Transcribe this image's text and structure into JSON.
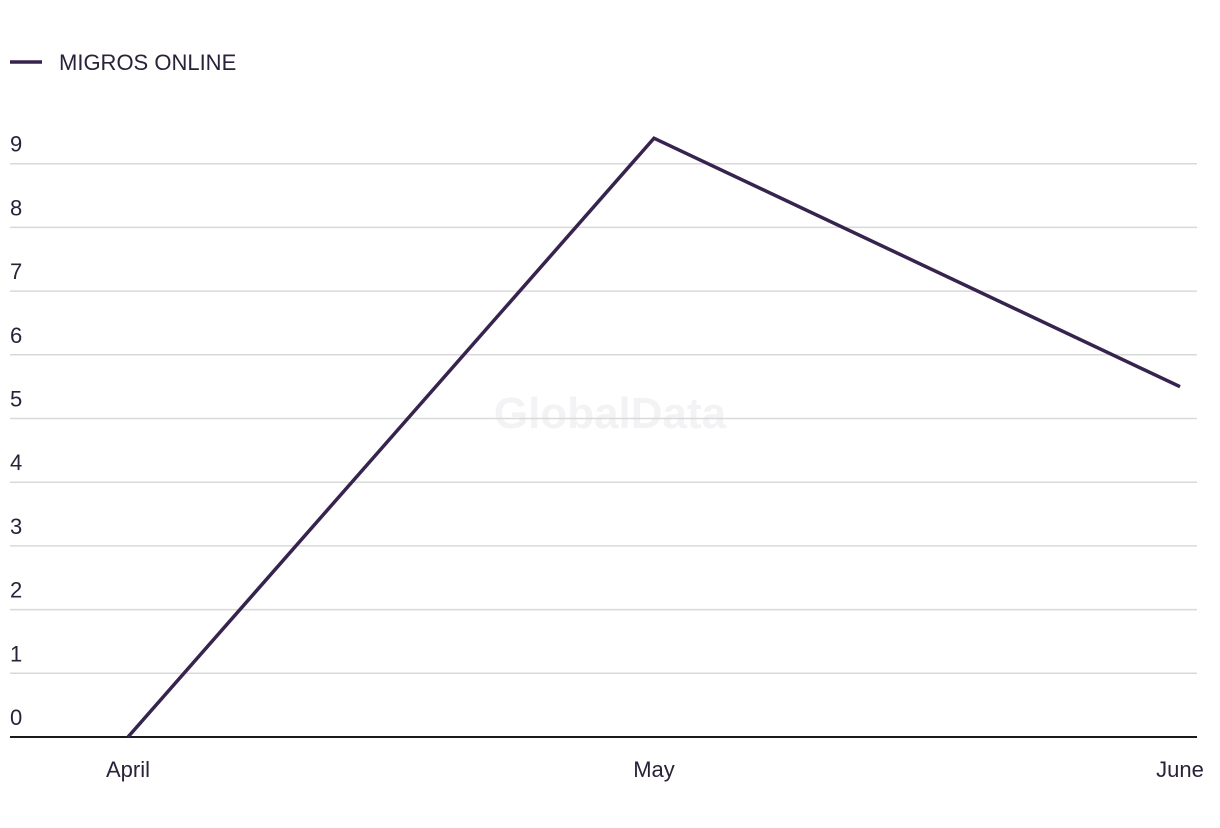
{
  "chart_data": {
    "type": "line",
    "watermark": "GlobalData",
    "categories": [
      "April",
      "May",
      "June"
    ],
    "series": [
      {
        "name": "MIGROS ONLINE",
        "color": "#36244f",
        "values": [
          0,
          9.4,
          5.5
        ]
      }
    ],
    "ylim": [
      0,
      10
    ],
    "yticks": [
      0,
      1,
      2,
      3,
      4,
      5,
      6,
      7,
      8,
      9
    ],
    "grid": true,
    "legend": "top-left"
  }
}
